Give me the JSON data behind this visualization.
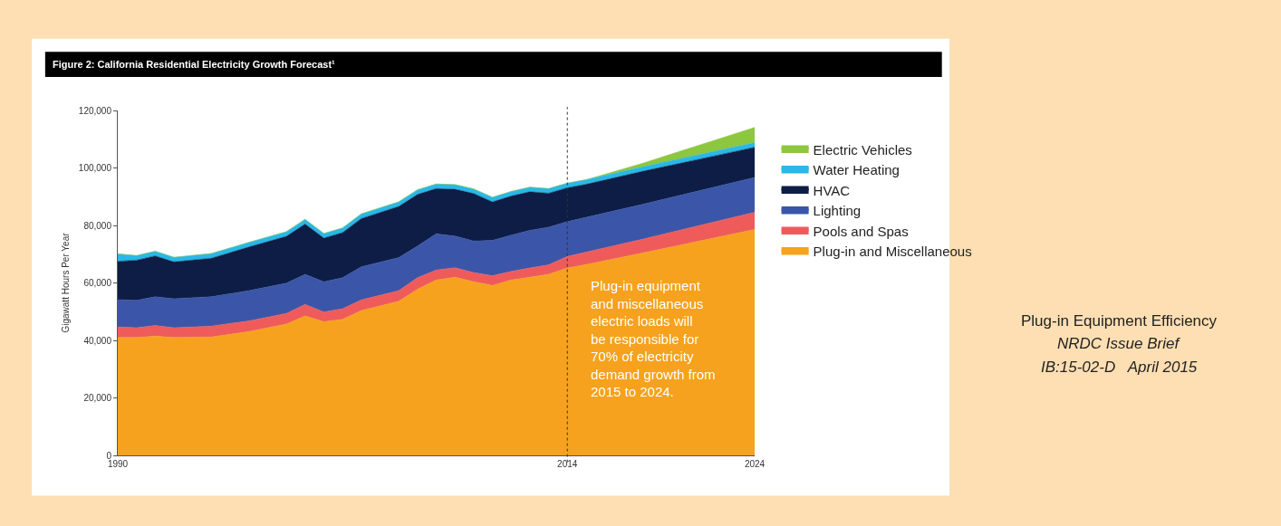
{
  "chart_data": {
    "type": "area",
    "stacked": true,
    "title": "Figure 2: California Residential Electricity Growth Forecast¹",
    "ylabel": "Gigawatt Hours Per Year",
    "x": [
      1990,
      1991,
      1992,
      1993,
      1995,
      1997,
      1999,
      2000,
      2001,
      2002,
      2003,
      2005,
      2006,
      2007,
      2008,
      2009,
      2010,
      2011,
      2012,
      2013,
      2014,
      2015,
      2018,
      2024
    ],
    "series": [
      {
        "name": "Plug-in and Miscellaneous",
        "color": "#f6a21e",
        "values": [
          41000,
          41000,
          41500,
          41000,
          41200,
          43100,
          45700,
          48500,
          46500,
          47300,
          50400,
          53600,
          57800,
          61000,
          62000,
          60400,
          59100,
          61000,
          62000,
          63000,
          65200,
          66400,
          70400,
          78600
        ]
      },
      {
        "name": "Pools and Spas",
        "color": "#ef5b5b",
        "values": [
          3700,
          3400,
          3700,
          3400,
          3800,
          3700,
          3700,
          4000,
          3400,
          3700,
          3700,
          3700,
          4000,
          3500,
          3300,
          3200,
          3400,
          3000,
          3200,
          3300,
          4000,
          4300,
          4800,
          6000
        ]
      },
      {
        "name": "Lighting",
        "color": "#3b56a8",
        "values": [
          9500,
          9500,
          10000,
          10100,
          10200,
          10500,
          10500,
          10500,
          10500,
          10800,
          11500,
          11500,
          11000,
          12600,
          11000,
          11000,
          12300,
          12600,
          13100,
          13100,
          12100,
          12100,
          12100,
          12100
        ]
      },
      {
        "name": "HVAC",
        "color": "#0d1d45",
        "values": [
          13300,
          14000,
          14200,
          12800,
          13400,
          15200,
          16300,
          17500,
          15200,
          15700,
          16800,
          17800,
          18000,
          15700,
          16300,
          16500,
          13400,
          13600,
          13400,
          11800,
          11800,
          11500,
          11500,
          10500
        ]
      },
      {
        "name": "Water Heating",
        "color": "#29b8e8",
        "values": [
          2600,
          1600,
          1600,
          1600,
          1600,
          1600,
          1600,
          1600,
          1600,
          1600,
          1600,
          1600,
          1600,
          1600,
          1600,
          1600,
          1600,
          1600,
          1600,
          1600,
          1600,
          1600,
          1600,
          1600
        ]
      },
      {
        "name": "Electric Vehicles",
        "color": "#8dc63f",
        "values": [
          0,
          0,
          0,
          0,
          0,
          0,
          0,
          0,
          0,
          0,
          0,
          0,
          0,
          0,
          0,
          0,
          0,
          0,
          0,
          0,
          0,
          0,
          1200,
          5300
        ]
      }
    ],
    "xlim": [
      1990,
      2024
    ],
    "xticks": [
      1990,
      2014,
      2024
    ],
    "ylim": [
      0,
      120000
    ],
    "yticks": [
      {
        "value": 0,
        "label": "0"
      },
      {
        "value": 20000,
        "label": "20,000"
      },
      {
        "value": 40000,
        "label": "40,000"
      },
      {
        "value": 60000,
        "label": "60,000"
      },
      {
        "value": 80000,
        "label": "80,000"
      },
      {
        "value": 100000,
        "label": "100,000"
      },
      {
        "value": 120000,
        "label": "120,000"
      }
    ],
    "ref_lines": [
      {
        "axis": "x",
        "value": 2014,
        "color": "#333333",
        "line_style": "dotted"
      }
    ],
    "annotations": [
      "Plug-in equipment and miscellaneous electric loads will be responsible for 70% of electricity demand growth from 2015 to 2024.",
      "Plug-in Equipment Efficiency",
      "NRDC Issue Brief",
      "IB:15-02-D   April 2015"
    ],
    "grid": false,
    "legend": "right"
  }
}
